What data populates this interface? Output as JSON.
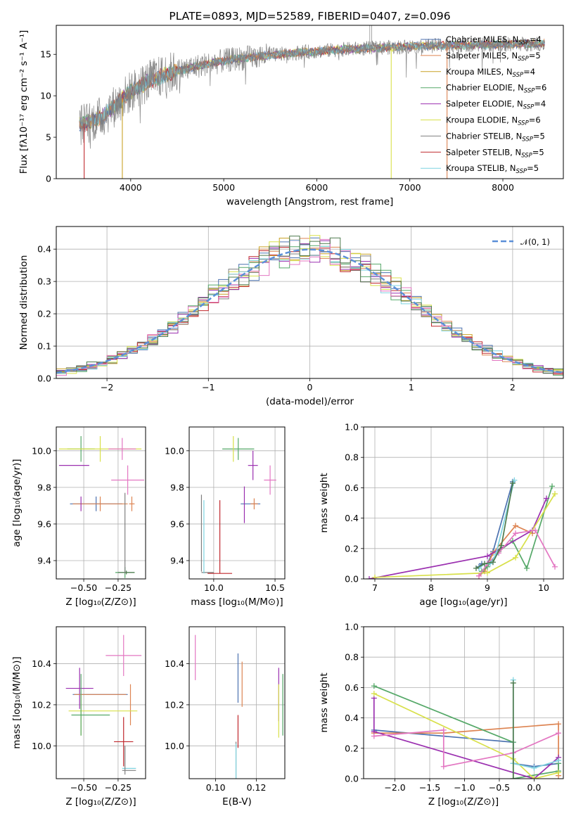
{
  "colors": {
    "chabrier_miles": "#4c72b0",
    "salpeter_miles": "#dd8452",
    "kroupa_miles": "#c9a227",
    "chabrier_elodie": "#55a868",
    "salpeter_elodie": "#9b30b0",
    "kroupa_elodie": "#d8e04a",
    "chabrier_stelib": "#7f7f7f",
    "salpeter_stelib": "#c0282d",
    "kroupa_stelib": "#7fd3e0",
    "extra_pink": "#e377c2",
    "dark_green": "#4d7a4d",
    "gauss": "#5b8fd8",
    "grid": "#b0b0b0"
  },
  "chart_data": [
    {
      "type": "line",
      "title": "PLATE=0893, MJD=52589, FIBERID=0407, z=0.096",
      "xlabel": "wavelength [Angstrom, rest frame]",
      "ylabel": "Flux [fλ10⁻¹⁷ erg cm⁻² s⁻¹ A⁻¹]",
      "xlim": [
        3200,
        8650
      ],
      "ylim": [
        0,
        18.5
      ],
      "xticks": [
        "4000",
        "5000",
        "6000",
        "7000",
        "8000"
      ],
      "yticks": [
        "0",
        "5",
        "10",
        "15"
      ],
      "grid": false,
      "legend_position": "upper-right",
      "series": [
        {
          "name": "Chabrier MILES, N_SSP=4",
          "color": "chabrier_miles"
        },
        {
          "name": "Salpeter MILES, N_SSP=5",
          "color": "salpeter_miles"
        },
        {
          "name": "Kroupa MILES, N_SSP=4",
          "color": "kroupa_miles"
        },
        {
          "name": "Chabrier ELODIE, N_SSP=6",
          "color": "chabrier_elodie"
        },
        {
          "name": "Salpeter ELODIE, N_SSP=4",
          "color": "salpeter_elodie"
        },
        {
          "name": "Kroupa ELODIE, N_SSP=6",
          "color": "kroupa_elodie"
        },
        {
          "name": "Chabrier STELIB, N_SSP=5",
          "color": "chabrier_stelib"
        },
        {
          "name": "Salpeter STELIB, N_SSP=5",
          "color": "salpeter_stelib"
        },
        {
          "name": "Kroupa STELIB, N_SSP=5",
          "color": "kroupa_stelib"
        }
      ],
      "continuum": {
        "x": [
          3450,
          3550,
          3700,
          3850,
          4000,
          4200,
          4500,
          4800,
          5100,
          5500,
          5900,
          6300,
          6700,
          7100,
          7500,
          8000,
          8450
        ],
        "y": [
          6.5,
          6.8,
          7.5,
          9.0,
          10.5,
          11.8,
          13.0,
          13.8,
          14.4,
          14.9,
          15.3,
          15.6,
          15.8,
          16.0,
          16.1,
          16.2,
          16.3
        ]
      },
      "cutoffs": [
        {
          "x": 3500,
          "color": "salpeter_stelib"
        },
        {
          "x": 3910,
          "color": "kroupa_miles"
        },
        {
          "x": 6800,
          "color": "kroupa_elodie"
        },
        {
          "x": 7400,
          "color": "salpeter_miles"
        }
      ]
    },
    {
      "type": "histogram",
      "xlabel": "(data-model)/error",
      "ylabel": "Normed distribution",
      "xlim": [
        -2.5,
        2.5
      ],
      "ylim": [
        0,
        0.47
      ],
      "xticks": [
        "−2",
        "−1",
        "0",
        "1",
        "2"
      ],
      "yticks": [
        "0.0",
        "0.1",
        "0.2",
        "0.3",
        "0.4"
      ],
      "grid": true,
      "legend": "𝒩(0, 1)",
      "legend_position": "upper-right",
      "bin_width": 0.1,
      "gaussian": {
        "mean": 0,
        "sigma": 1
      }
    },
    {
      "type": "scatter",
      "name": "age vs Z",
      "xlabel": "Z [log₁₀(Z/Z⊙)]",
      "ylabel": "age  [log₁₀(age/yr)]",
      "xlim": [
        -0.7,
        -0.05
      ],
      "ylim": [
        9.3,
        10.13
      ],
      "xticks": [
        "−0.50",
        "−0.25"
      ],
      "yticks": [
        "9.4",
        "9.6",
        "9.8",
        "10.0"
      ],
      "grid": true,
      "points": [
        {
          "x": -0.52,
          "y": 10.01,
          "xerr": 0.1,
          "yerr": 0.07,
          "color": "chabrier_elodie"
        },
        {
          "x": -0.38,
          "y": 10.01,
          "xerr": 0.3,
          "yerr": 0.07,
          "color": "kroupa_elodie"
        },
        {
          "x": -0.22,
          "y": 10.01,
          "xerr": 0.1,
          "yerr": 0.06,
          "color": "extra_pink"
        },
        {
          "x": -0.57,
          "y": 9.92,
          "xerr": 0.11,
          "yerr": 0.0,
          "color": "salpeter_elodie"
        },
        {
          "x": -0.18,
          "y": 9.84,
          "xerr": 0.12,
          "yerr": 0.08,
          "color": "extra_pink"
        },
        {
          "x": -0.41,
          "y": 9.71,
          "xerr": 0.19,
          "yerr": 0.04,
          "color": "chabrier_miles"
        },
        {
          "x": -0.38,
          "y": 9.71,
          "xerr": 0.2,
          "yerr": 0.04,
          "color": "salpeter_miles"
        },
        {
          "x": -0.15,
          "y": 9.71,
          "xerr": 0.02,
          "yerr": 0.04,
          "color": "salpeter_miles"
        },
        {
          "x": -0.52,
          "y": 9.71,
          "xerr": 0.0,
          "yerr": 0.04,
          "color": "salpeter_elodie"
        },
        {
          "x": -0.2,
          "y": 9.335,
          "xerr": 0.07,
          "yerr": 0.03,
          "color": "chabrier_elodie"
        },
        {
          "x": -0.19,
          "y": 9.335,
          "xerr": 0.06,
          "yerr": 0.01,
          "color": "dark_green"
        },
        {
          "x": -0.2,
          "y": 9.55,
          "xerr": 0.0,
          "yerr": 0.22,
          "color": "chabrier_stelib"
        }
      ]
    },
    {
      "type": "scatter",
      "name": "age vs mass",
      "xlabel": "mass [log₁₀(M/M⊙)]",
      "ylabel": "",
      "xlim": [
        9.8,
        10.58
      ],
      "ylim": [
        9.3,
        10.13
      ],
      "xticks": [
        "9.5",
        "10.0",
        "10.5"
      ],
      "yticks": [
        "9.4",
        "9.6",
        "9.8",
        "10.0"
      ],
      "grid": true,
      "points": [
        {
          "x": 10.2,
          "y": 10.01,
          "xerr": 0.13,
          "yerr": 0.06,
          "color": "chabrier_elodie"
        },
        {
          "x": 10.16,
          "y": 10.01,
          "xerr": 0.0,
          "yerr": 0.07,
          "color": "kroupa_elodie"
        },
        {
          "x": 10.32,
          "y": 9.92,
          "xerr": 0.04,
          "yerr": 0.08,
          "color": "salpeter_elodie"
        },
        {
          "x": 10.46,
          "y": 9.84,
          "xerr": 0.05,
          "yerr": 0.08,
          "color": "extra_pink"
        },
        {
          "x": 10.3,
          "y": 9.71,
          "xerr": 0.08,
          "yerr": 0.0,
          "color": "chabrier_miles"
        },
        {
          "x": 10.33,
          "y": 9.71,
          "xerr": 0.03,
          "yerr": 0.03,
          "color": "salpeter_miles"
        },
        {
          "x": 10.25,
          "y": 9.705,
          "xerr": 0.0,
          "yerr": 0.1,
          "color": "salpeter_elodie"
        },
        {
          "x": 9.95,
          "y": 9.335,
          "xerr": 0.05,
          "yerr": 0.0,
          "color": "chabrier_stelib"
        },
        {
          "x": 9.9,
          "y": 9.55,
          "xerr": 0.0,
          "yerr": 0.21,
          "color": "chabrier_stelib"
        },
        {
          "x": 9.92,
          "y": 9.53,
          "xerr": 0.0,
          "yerr": 0.2,
          "color": "kroupa_stelib"
        },
        {
          "x": 10.05,
          "y": 9.53,
          "xerr": 0.0,
          "yerr": 0.2,
          "color": "salpeter_stelib"
        },
        {
          "x": 10.05,
          "y": 9.33,
          "xerr": 0.1,
          "yerr": 0.0,
          "color": "salpeter_stelib"
        }
      ]
    },
    {
      "type": "line",
      "name": "mass weight vs age",
      "xlabel": "age  [log₁₀(age/yr)]",
      "ylabel": "mass weight",
      "xlim": [
        6.8,
        10.35
      ],
      "ylim": [
        0,
        1
      ],
      "xticks": [
        "7",
        "8",
        "9",
        "10"
      ],
      "yticks": [
        "0.0",
        "0.2",
        "0.4",
        "0.6",
        "0.8",
        "1.0"
      ],
      "grid": true,
      "series": [
        {
          "color": "chabrier_miles",
          "x": [
            8.85,
            8.9,
            9.0,
            9.1,
            9.45
          ],
          "y": [
            0.08,
            0.1,
            0.1,
            0.18,
            0.64
          ]
        },
        {
          "color": "salpeter_miles",
          "x": [
            8.85,
            8.95,
            9.1,
            9.5,
            9.8
          ],
          "y": [
            0.02,
            0.05,
            0.17,
            0.35,
            0.3
          ]
        },
        {
          "color": "chabrier_elodie",
          "x": [
            8.9,
            9.0,
            9.2,
            9.45,
            9.7,
            10.15
          ],
          "y": [
            0.05,
            0.08,
            0.18,
            0.25,
            0.07,
            0.61
          ]
        },
        {
          "color": "salpeter_elodie",
          "x": [
            6.9,
            9.0,
            9.8,
            10.05
          ],
          "y": [
            0.0,
            0.15,
            0.32,
            0.53
          ]
        },
        {
          "color": "kroupa_elodie",
          "x": [
            7.0,
            9.0,
            9.5,
            10.2
          ],
          "y": [
            0.01,
            0.04,
            0.14,
            0.56
          ]
        },
        {
          "color": "extra_pink",
          "x": [
            8.85,
            9.0,
            9.2,
            9.5,
            9.85,
            10.2
          ],
          "y": [
            0.02,
            0.1,
            0.17,
            0.3,
            0.32,
            0.08
          ]
        },
        {
          "color": "kroupa_stelib",
          "x": [
            8.85,
            8.95,
            9.05,
            9.15,
            9.48
          ],
          "y": [
            0.07,
            0.1,
            0.1,
            0.16,
            0.65
          ]
        },
        {
          "color": "dark_green",
          "x": [
            8.8,
            8.95,
            9.1,
            9.25,
            9.45
          ],
          "y": [
            0.07,
            0.1,
            0.11,
            0.22,
            0.63
          ]
        }
      ]
    },
    {
      "type": "scatter",
      "name": "mass vs Z",
      "xlabel": "Z [log₁₀(Z/Z⊙)]",
      "ylabel": "mass [log₁₀(M/M⊙)]",
      "xlim": [
        -0.7,
        -0.05
      ],
      "ylim": [
        9.84,
        10.58
      ],
      "xticks": [
        "−0.50",
        "−0.25"
      ],
      "yticks": [
        "10.0",
        "10.2",
        "10.4"
      ],
      "grid": true,
      "points": [
        {
          "x": -0.21,
          "y": 10.44,
          "xerr": 0.13,
          "yerr": 0.1,
          "color": "extra_pink"
        },
        {
          "x": -0.53,
          "y": 10.28,
          "xerr": 0.1,
          "yerr": 0.1,
          "color": "salpeter_elodie"
        },
        {
          "x": -0.38,
          "y": 10.25,
          "xerr": 0.2,
          "yerr": 0.0,
          "color": "chabrier_miles"
        },
        {
          "x": -0.38,
          "y": 10.25,
          "xerr": 0.19,
          "yerr": 0.0,
          "color": "salpeter_miles"
        },
        {
          "x": -0.16,
          "y": 10.2,
          "xerr": 0.0,
          "yerr": 0.1,
          "color": "salpeter_miles"
        },
        {
          "x": -0.36,
          "y": 10.17,
          "xerr": 0.25,
          "yerr": 0.0,
          "color": "kroupa_elodie"
        },
        {
          "x": -0.52,
          "y": 10.15,
          "xerr": 0.0,
          "yerr": 0.1,
          "color": "kroupa_elodie"
        },
        {
          "x": -0.52,
          "y": 10.2,
          "xerr": 0.0,
          "yerr": 0.15,
          "color": "chabrier_elodie"
        },
        {
          "x": -0.45,
          "y": 10.15,
          "xerr": 0.14,
          "yerr": 0.0,
          "color": "chabrier_elodie"
        },
        {
          "x": -0.21,
          "y": 10.02,
          "xerr": 0.07,
          "yerr": 0.12,
          "color": "salpeter_stelib"
        },
        {
          "x": -0.17,
          "y": 9.89,
          "xerr": 0.05,
          "yerr": 0.0,
          "color": "kroupa_stelib"
        },
        {
          "x": -0.17,
          "y": 9.88,
          "xerr": 0.05,
          "yerr": 0.0,
          "color": "chabrier_stelib"
        },
        {
          "x": -0.2,
          "y": 9.93,
          "xerr": 0.0,
          "yerr": 0.07,
          "color": "chabrier_stelib"
        }
      ]
    },
    {
      "type": "scatter",
      "name": "mass vs E(B-V)",
      "xlabel": "E(B-V)",
      "ylabel": "",
      "xlim": [
        0.087,
        0.134
      ],
      "ylim": [
        9.84,
        10.58
      ],
      "xticks": [
        "0.10",
        "0.12"
      ],
      "yticks": [
        "10.0",
        "10.2",
        "10.4"
      ],
      "grid": true,
      "points": [
        {
          "x": 0.09,
          "y": 10.43,
          "xerr": 0.0,
          "yerr": 0.11,
          "color": "extra_pink"
        },
        {
          "x": 0.111,
          "y": 10.33,
          "xerr": 0.0,
          "yerr": 0.12,
          "color": "chabrier_miles"
        },
        {
          "x": 0.113,
          "y": 10.3,
          "xerr": 0.0,
          "yerr": 0.11,
          "color": "salpeter_miles"
        },
        {
          "x": 0.131,
          "y": 10.25,
          "xerr": 0.0,
          "yerr": 0.13,
          "color": "salpeter_elodie"
        },
        {
          "x": 0.131,
          "y": 10.17,
          "xerr": 0.0,
          "yerr": 0.13,
          "color": "kroupa_elodie"
        },
        {
          "x": 0.133,
          "y": 10.2,
          "xerr": 0.0,
          "yerr": 0.15,
          "color": "chabrier_elodie"
        },
        {
          "x": 0.111,
          "y": 10.07,
          "xerr": 0.0,
          "yerr": 0.08,
          "color": "salpeter_stelib"
        },
        {
          "x": 0.11,
          "y": 9.93,
          "xerr": 0.0,
          "yerr": 0.09,
          "color": "chabrier_stelib"
        },
        {
          "x": 0.11,
          "y": 9.92,
          "xerr": 0.0,
          "yerr": 0.09,
          "color": "kroupa_stelib"
        }
      ]
    },
    {
      "type": "line",
      "name": "mass weight vs Z",
      "xlabel": "Z [log₁₀(Z/Z⊙)]",
      "ylabel": "mass weight",
      "xlim": [
        -2.45,
        0.42
      ],
      "ylim": [
        0,
        1
      ],
      "xticks": [
        "−2.0",
        "−1.5",
        "−1.0",
        "−0.5",
        "0.0"
      ],
      "yticks": [
        "0.0",
        "0.2",
        "0.4",
        "0.6",
        "0.8",
        "1.0"
      ],
      "grid": true,
      "series": [
        {
          "color": "chabrier_miles",
          "x": [
            -2.3,
            -0.3,
            -0.3,
            0.0,
            0.35
          ],
          "y": [
            0.32,
            0.24,
            0.1,
            0.08,
            0.1
          ]
        },
        {
          "color": "salpeter_miles",
          "x": [
            -2.3,
            -1.3,
            0.35,
            0.35
          ],
          "y": [
            0.3,
            0.3,
            0.36,
            0.02
          ]
        },
        {
          "color": "chabrier_elodie",
          "x": [
            -2.3,
            -0.3,
            -0.3,
            0.35,
            0.35
          ],
          "y": [
            0.61,
            0.24,
            0.0,
            0.05,
            0.1
          ]
        },
        {
          "color": "salpeter_elodie",
          "x": [
            -2.3,
            -2.3,
            0.0,
            0.35
          ],
          "y": [
            0.53,
            0.31,
            0.0,
            0.14
          ]
        },
        {
          "color": "kroupa_elodie",
          "x": [
            -2.3,
            -0.3,
            0.0,
            0.35
          ],
          "y": [
            0.56,
            0.13,
            0.0,
            0.04
          ]
        },
        {
          "color": "extra_pink",
          "x": [
            -2.3,
            -1.3,
            -1.3,
            -0.3,
            0.35
          ],
          "y": [
            0.28,
            0.32,
            0.08,
            0.17,
            0.3
          ]
        },
        {
          "color": "kroupa_stelib",
          "x": [
            -0.3,
            -0.3,
            0.0,
            0.35
          ],
          "y": [
            0.65,
            0.1,
            0.07,
            0.12
          ]
        },
        {
          "color": "dark_green",
          "x": [
            -0.3,
            -0.3
          ],
          "y": [
            0.63,
            0.0
          ]
        }
      ]
    }
  ]
}
